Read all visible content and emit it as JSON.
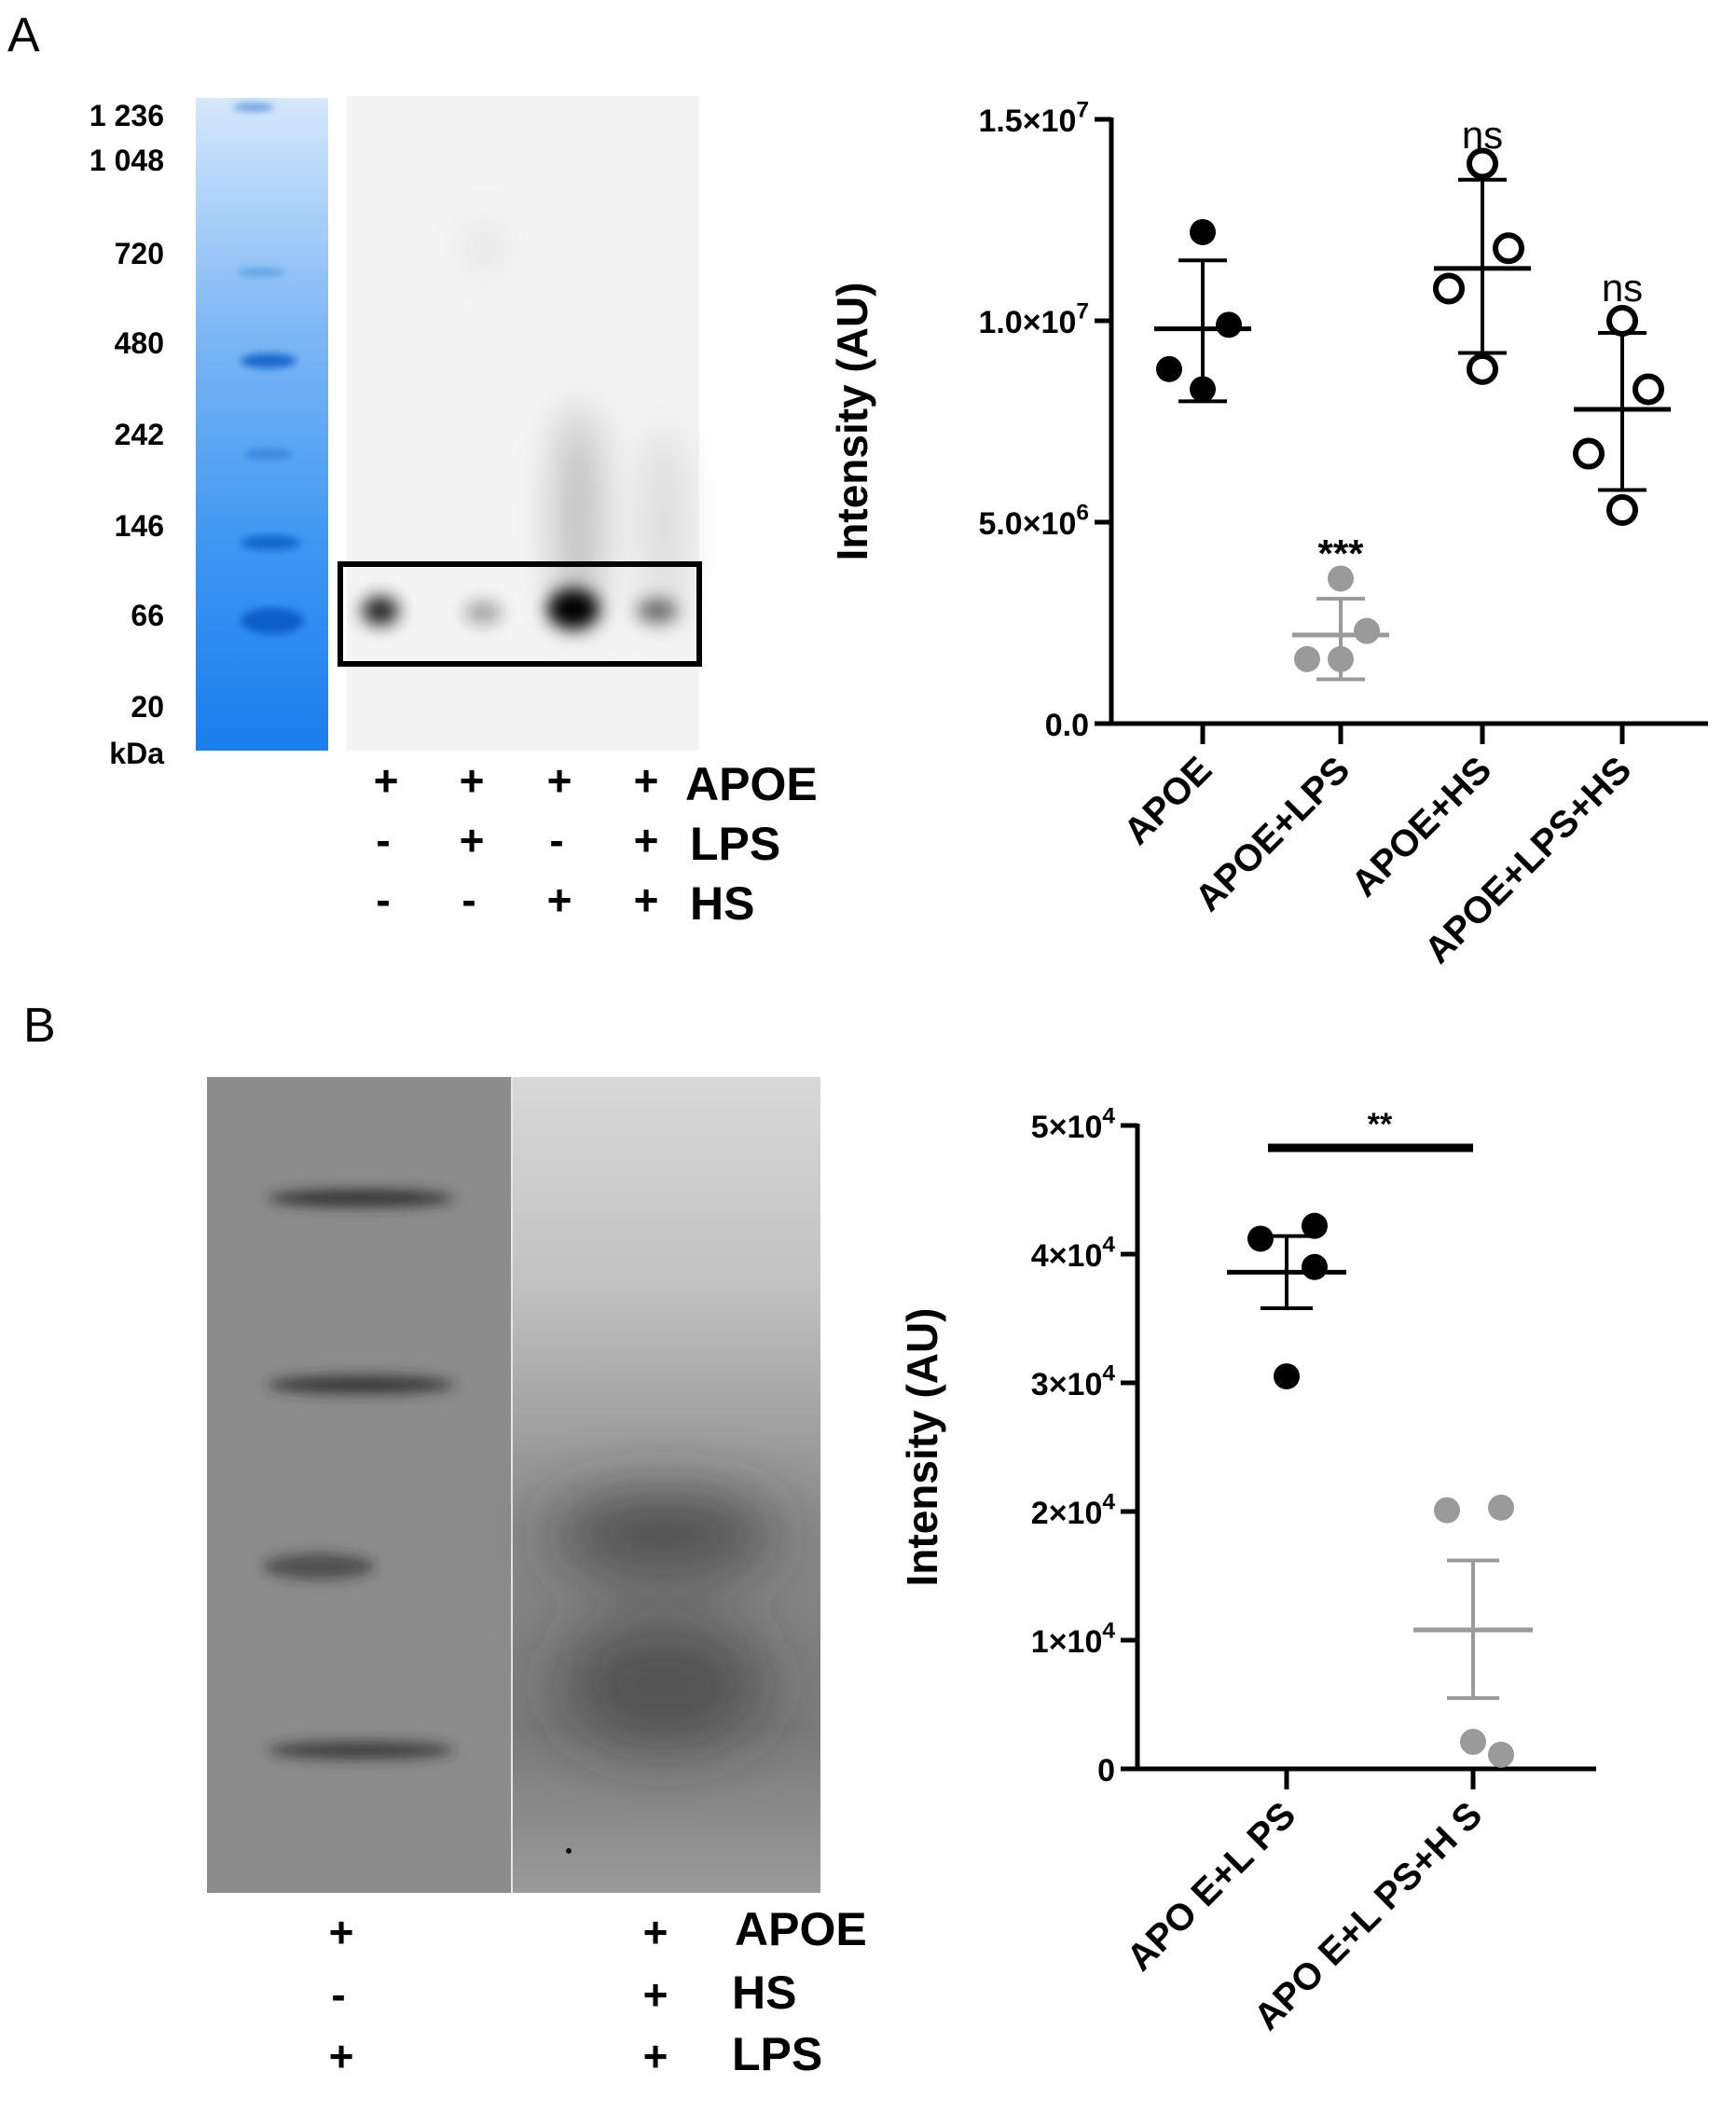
{
  "panels": {
    "a": {
      "letter": "A"
    },
    "b": {
      "letter": "B"
    }
  },
  "colors": {
    "black": "#000000",
    "grey": "#9a9a9a",
    "ladder_blue": "#1f86f0"
  },
  "gel_a": {
    "mw_labels": [
      "1 236",
      "1 048",
      "720",
      "480",
      "242",
      "146",
      "66",
      "20",
      "kDa"
    ],
    "conditions": [
      {
        "name": "APOE",
        "signs": [
          "+",
          "+",
          "+",
          "+"
        ]
      },
      {
        "name": "LPS",
        "signs": [
          "-",
          "+",
          "-",
          "+"
        ]
      },
      {
        "name": "HS",
        "signs": [
          "-",
          "-",
          "+",
          "+"
        ]
      }
    ]
  },
  "gel_b": {
    "conditions": [
      {
        "name": "APOE",
        "signs": [
          "+",
          "+"
        ]
      },
      {
        "name": "HS",
        "signs": [
          "-",
          "+"
        ]
      },
      {
        "name": "LPS",
        "signs": [
          "+",
          "+"
        ]
      }
    ]
  },
  "chart_data": [
    {
      "type": "scatter",
      "ylabel": "Intensity (AU)",
      "ylim": [
        0,
        15000000
      ],
      "yticks": [
        {
          "value": 0,
          "base": "0.0",
          "exp": ""
        },
        {
          "value": 5000000,
          "base": "5.0×10",
          "exp": "6"
        },
        {
          "value": 10000000,
          "base": "1.0×10",
          "exp": "7"
        },
        {
          "value": 15000000,
          "base": "1.5×10",
          "exp": "7"
        }
      ],
      "categories": [
        "APOE",
        "APOE+LPS",
        "APOE+HS",
        "APOE+LPS+HS"
      ],
      "series": [
        {
          "category": "APOE",
          "values": [
            12200000,
            9900000,
            8800000,
            8300000
          ],
          "mean": 9800000,
          "sd_low": 8000000,
          "sd_high": 11500000,
          "style": "filled-black",
          "annotation": ""
        },
        {
          "category": "APOE+LPS",
          "values": [
            3600000,
            2300000,
            1600000,
            1600000
          ],
          "mean": 2200000,
          "sd_low": 1100000,
          "sd_high": 3100000,
          "style": "filled-grey",
          "annotation": "***"
        },
        {
          "category": "APOE+HS",
          "values": [
            13900000,
            11800000,
            10800000,
            8800000
          ],
          "mean": 11300000,
          "sd_low": 9200000,
          "sd_high": 13500000,
          "style": "open-black",
          "annotation": "ns"
        },
        {
          "category": "APOE+LPS+HS",
          "values": [
            10000000,
            8300000,
            6700000,
            5300000
          ],
          "mean": 7800000,
          "sd_low": 5800000,
          "sd_high": 9700000,
          "style": "open-black",
          "annotation": "ns"
        }
      ]
    },
    {
      "type": "scatter",
      "ylabel": "Intensity (AU)",
      "ylim": [
        0,
        50000
      ],
      "yticks": [
        {
          "value": 0,
          "base": "0",
          "exp": ""
        },
        {
          "value": 10000,
          "base": "1×10",
          "exp": "4"
        },
        {
          "value": 20000,
          "base": "2×10",
          "exp": "4"
        },
        {
          "value": 30000,
          "base": "3×10",
          "exp": "4"
        },
        {
          "value": 40000,
          "base": "4×10",
          "exp": "4"
        },
        {
          "value": 50000,
          "base": "5×10",
          "exp": "4"
        }
      ],
      "categories": [
        "APO E+L PS",
        "APO E+L PS+H S"
      ],
      "series": [
        {
          "category": "APO E+L PS",
          "values": [
            42200,
            41200,
            39000,
            30500
          ],
          "mean": 38600,
          "sem_low": 35800,
          "sem_high": 41400,
          "style": "filled-black"
        },
        {
          "category": "APO E+L PS+H S",
          "values": [
            20300,
            20100,
            1100,
            2100
          ],
          "mean": 10800,
          "sem_low": 5500,
          "sem_high": 16200,
          "style": "filled-grey"
        }
      ],
      "significance": {
        "label": "**",
        "between": [
          0,
          1
        ]
      }
    }
  ]
}
